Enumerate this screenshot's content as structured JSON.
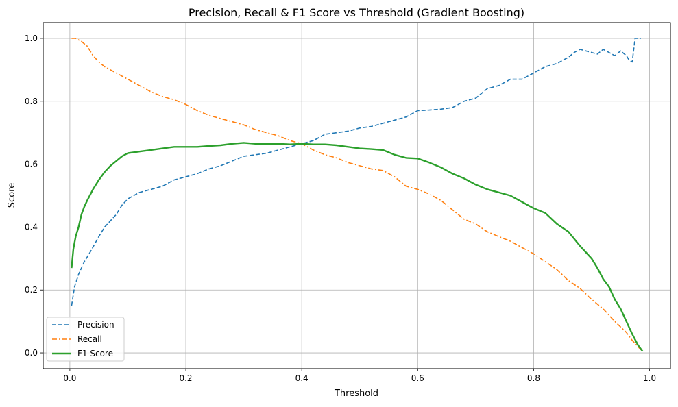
{
  "chart_data": {
    "type": "line",
    "title": "Precision, Recall & F1 Score vs Threshold (Gradient Boosting)",
    "xlabel": "Threshold",
    "ylabel": "Score",
    "xlim": [
      -0.046,
      1.036
    ],
    "ylim": [
      -0.05,
      1.05
    ],
    "xticks": [
      0.0,
      0.2,
      0.4,
      0.6,
      0.8,
      1.0
    ],
    "xtick_labels": [
      "0.0",
      "0.2",
      "0.4",
      "0.6",
      "0.8",
      "1.0"
    ],
    "yticks": [
      0.0,
      0.2,
      0.4,
      0.6,
      0.8,
      1.0
    ],
    "ytick_labels": [
      "0.0",
      "0.2",
      "0.4",
      "0.6",
      "0.8",
      "1.0"
    ],
    "grid": true,
    "legend_position": "lower-left",
    "series": [
      {
        "name": "Precision",
        "color": "#1f77b4",
        "dash": "dashed",
        "x": [
          0.003,
          0.008,
          0.015,
          0.025,
          0.035,
          0.05,
          0.06,
          0.07,
          0.08,
          0.09,
          0.1,
          0.12,
          0.14,
          0.16,
          0.18,
          0.2,
          0.22,
          0.24,
          0.26,
          0.28,
          0.3,
          0.32,
          0.34,
          0.36,
          0.38,
          0.4,
          0.42,
          0.44,
          0.46,
          0.48,
          0.5,
          0.52,
          0.54,
          0.56,
          0.58,
          0.6,
          0.62,
          0.64,
          0.66,
          0.68,
          0.7,
          0.72,
          0.74,
          0.76,
          0.78,
          0.8,
          0.82,
          0.84,
          0.86,
          0.87,
          0.88,
          0.9,
          0.91,
          0.92,
          0.93,
          0.94,
          0.95,
          0.96,
          0.965,
          0.97,
          0.975,
          0.98,
          0.985
        ],
        "y": [
          0.15,
          0.21,
          0.25,
          0.29,
          0.32,
          0.37,
          0.4,
          0.42,
          0.44,
          0.47,
          0.49,
          0.51,
          0.52,
          0.53,
          0.55,
          0.56,
          0.57,
          0.585,
          0.595,
          0.61,
          0.625,
          0.63,
          0.635,
          0.645,
          0.655,
          0.665,
          0.675,
          0.695,
          0.7,
          0.705,
          0.715,
          0.72,
          0.73,
          0.74,
          0.75,
          0.77,
          0.772,
          0.775,
          0.78,
          0.8,
          0.81,
          0.84,
          0.85,
          0.87,
          0.87,
          0.89,
          0.91,
          0.92,
          0.94,
          0.955,
          0.965,
          0.955,
          0.95,
          0.965,
          0.955,
          0.945,
          0.96,
          0.945,
          0.93,
          0.925,
          1.0,
          1.0,
          1.0
        ]
      },
      {
        "name": "Recall",
        "color": "#ff7f0e",
        "dash": "dashdot",
        "x": [
          0.003,
          0.01,
          0.02,
          0.03,
          0.04,
          0.05,
          0.06,
          0.08,
          0.1,
          0.12,
          0.14,
          0.16,
          0.18,
          0.2,
          0.22,
          0.24,
          0.26,
          0.28,
          0.3,
          0.32,
          0.34,
          0.36,
          0.38,
          0.4,
          0.42,
          0.44,
          0.46,
          0.48,
          0.5,
          0.52,
          0.54,
          0.56,
          0.58,
          0.6,
          0.62,
          0.64,
          0.66,
          0.68,
          0.7,
          0.72,
          0.74,
          0.76,
          0.78,
          0.8,
          0.82,
          0.84,
          0.86,
          0.88,
          0.9,
          0.92,
          0.94,
          0.96,
          0.97,
          0.98,
          0.985
        ],
        "y": [
          1.0,
          1.0,
          0.99,
          0.975,
          0.945,
          0.925,
          0.91,
          0.89,
          0.87,
          0.85,
          0.83,
          0.815,
          0.805,
          0.79,
          0.77,
          0.755,
          0.745,
          0.735,
          0.725,
          0.71,
          0.7,
          0.69,
          0.675,
          0.665,
          0.645,
          0.63,
          0.62,
          0.605,
          0.595,
          0.585,
          0.58,
          0.56,
          0.53,
          0.52,
          0.505,
          0.485,
          0.455,
          0.425,
          0.41,
          0.385,
          0.37,
          0.355,
          0.335,
          0.315,
          0.29,
          0.265,
          0.23,
          0.205,
          0.17,
          0.14,
          0.1,
          0.065,
          0.04,
          0.02,
          0.01
        ]
      },
      {
        "name": "F1 Score",
        "color": "#2ca02c",
        "dash": "solid",
        "x": [
          0.003,
          0.006,
          0.01,
          0.015,
          0.02,
          0.025,
          0.03,
          0.04,
          0.05,
          0.06,
          0.07,
          0.08,
          0.09,
          0.1,
          0.12,
          0.14,
          0.16,
          0.18,
          0.2,
          0.22,
          0.24,
          0.26,
          0.28,
          0.3,
          0.32,
          0.34,
          0.36,
          0.38,
          0.4,
          0.42,
          0.44,
          0.46,
          0.48,
          0.5,
          0.52,
          0.54,
          0.56,
          0.58,
          0.6,
          0.62,
          0.64,
          0.66,
          0.68,
          0.7,
          0.72,
          0.74,
          0.76,
          0.78,
          0.8,
          0.82,
          0.84,
          0.86,
          0.88,
          0.9,
          0.91,
          0.92,
          0.93,
          0.94,
          0.95,
          0.96,
          0.97,
          0.98,
          0.988
        ],
        "y": [
          0.27,
          0.33,
          0.37,
          0.4,
          0.44,
          0.465,
          0.485,
          0.52,
          0.55,
          0.575,
          0.595,
          0.61,
          0.625,
          0.635,
          0.64,
          0.645,
          0.65,
          0.655,
          0.655,
          0.655,
          0.658,
          0.66,
          0.665,
          0.668,
          0.665,
          0.665,
          0.665,
          0.663,
          0.665,
          0.663,
          0.663,
          0.66,
          0.655,
          0.65,
          0.648,
          0.645,
          0.63,
          0.62,
          0.618,
          0.605,
          0.59,
          0.57,
          0.555,
          0.535,
          0.52,
          0.51,
          0.5,
          0.48,
          0.46,
          0.445,
          0.41,
          0.385,
          0.34,
          0.3,
          0.27,
          0.235,
          0.21,
          0.17,
          0.14,
          0.1,
          0.06,
          0.025,
          0.005
        ]
      }
    ]
  }
}
